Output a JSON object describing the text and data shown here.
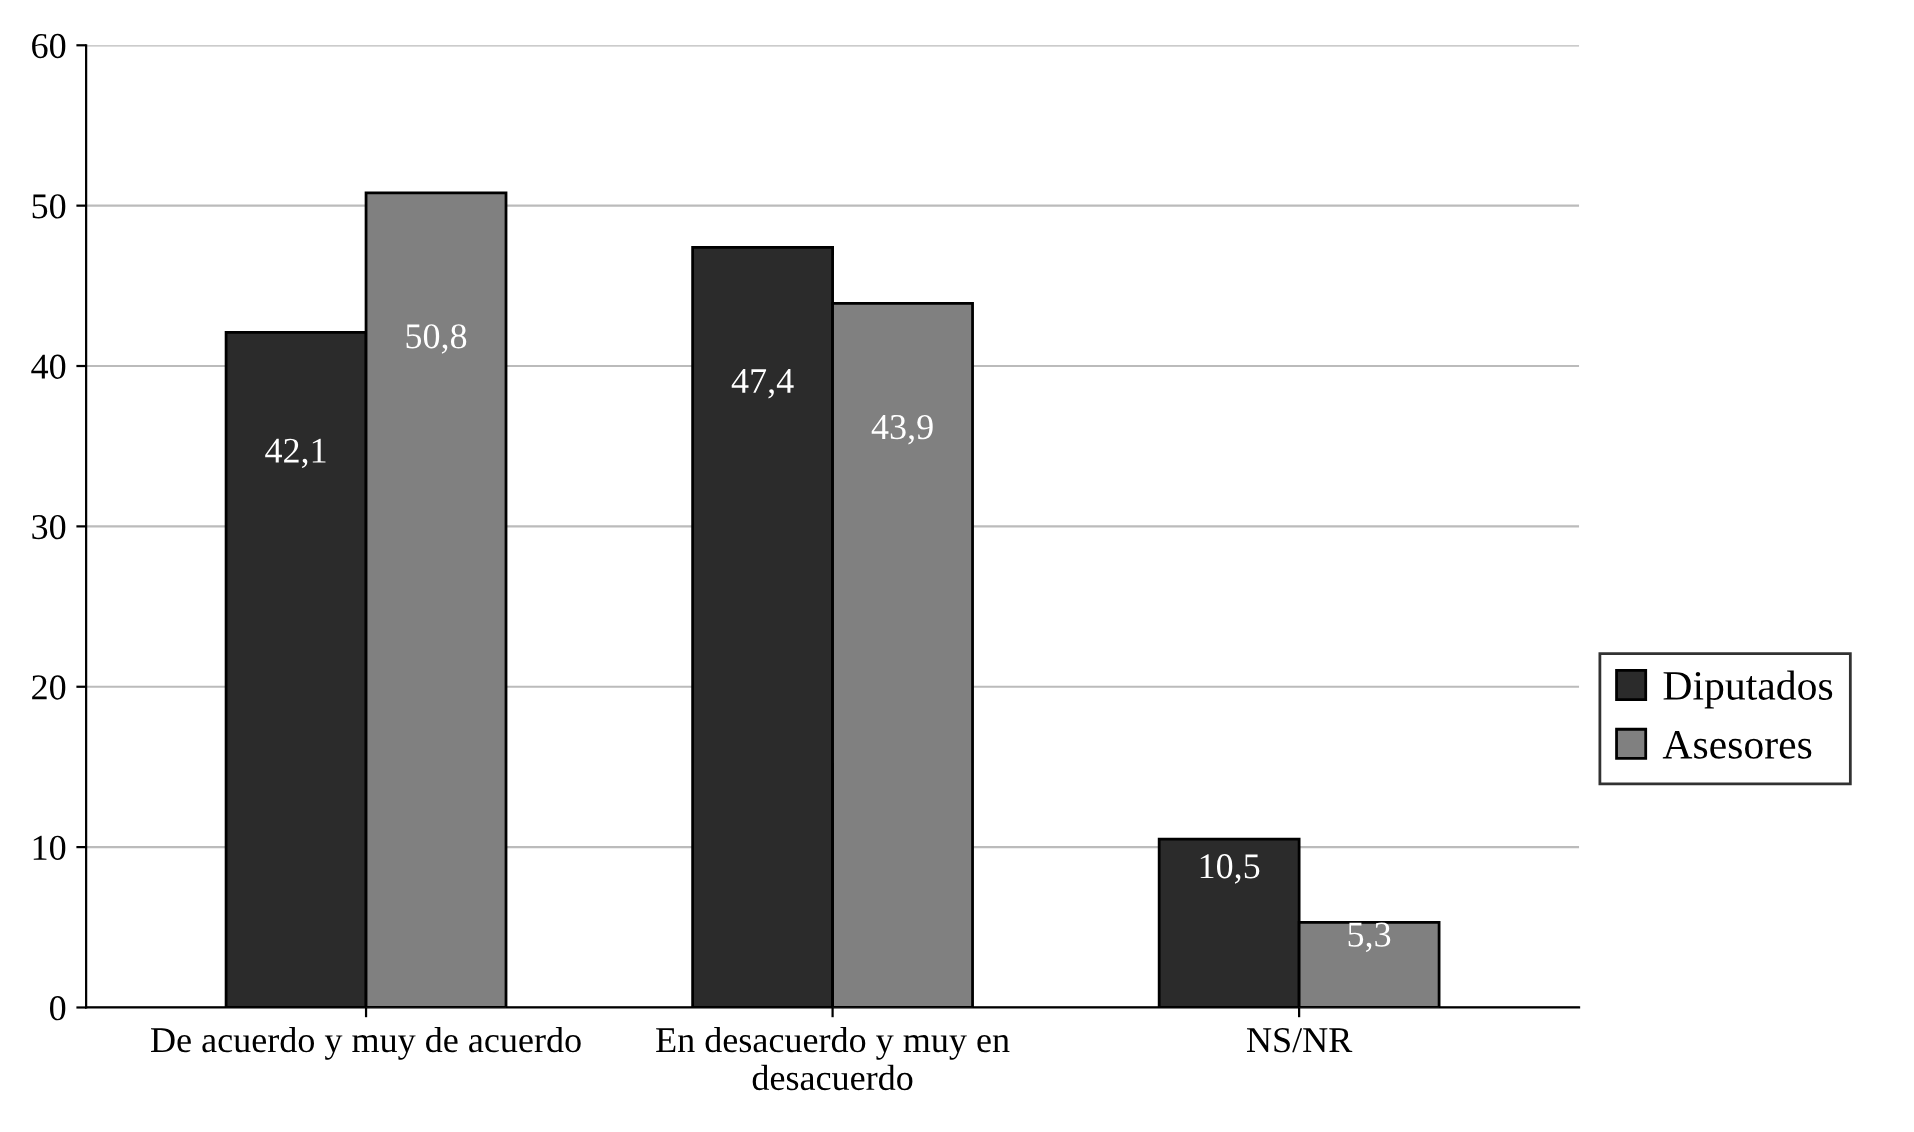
{
  "chart_data": {
    "type": "bar",
    "categories": [
      "De acuerdo y muy de acuerdo",
      "En desacuerdo y muy en desacuerdo",
      "NS/NR"
    ],
    "series": [
      {
        "name": "Diputados",
        "color": "#2b2b2b",
        "values": [
          42.1,
          47.4,
          10.5
        ],
        "value_labels": [
          "42,1",
          "47,4",
          "10,5"
        ]
      },
      {
        "name": "Asesores",
        "color": "#808080",
        "values": [
          50.8,
          43.9,
          5.3
        ],
        "value_labels": [
          "50,8",
          "43,9",
          "5,3"
        ]
      }
    ],
    "ylim": [
      0,
      60
    ],
    "yticks": [
      0,
      10,
      20,
      30,
      40,
      50,
      60
    ],
    "grid": "y",
    "legend": "right"
  }
}
